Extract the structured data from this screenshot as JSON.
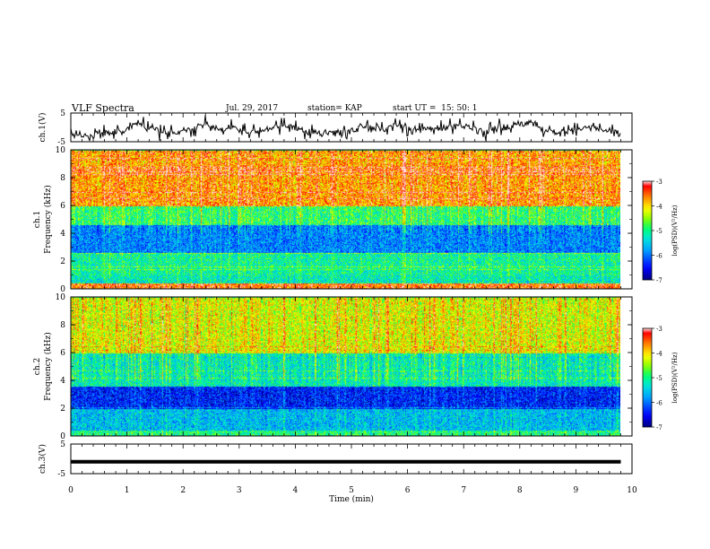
{
  "header": {
    "title": "VLF Spectra",
    "date": "Jul. 29, 2017",
    "station": "station= KAP",
    "start": "start UT =  15: 50: 1"
  },
  "chart_data": [
    {
      "type": "line",
      "name": "top-waveform",
      "ylabel": "ch.1(V)",
      "ylim": [
        -5,
        5
      ],
      "yticks": [
        "5",
        "-5"
      ],
      "x": [
        0,
        9.8
      ],
      "approx_level": 0,
      "color": "#000000"
    },
    {
      "type": "heatmap",
      "name": "ch1-spectrogram",
      "ylabel": "ch.1\nFrequency (kHz)",
      "ylim": [
        0,
        10
      ],
      "yticks": [
        "0",
        "2",
        "4",
        "6",
        "8",
        "10"
      ],
      "xlim": [
        0,
        9.8
      ],
      "colorbar": {
        "label": "log(PSD)(V²/Hz)",
        "range": [
          -7,
          -3
        ],
        "ticks": [
          "-3",
          "-4",
          "-5",
          "-6",
          "-7"
        ]
      },
      "bands": [
        {
          "from": 0.0,
          "to": 0.4,
          "level": -3.5
        },
        {
          "from": 0.4,
          "to": 1.0,
          "level": -5.2
        },
        {
          "from": 1.0,
          "to": 2.6,
          "level": -5.1
        },
        {
          "from": 2.6,
          "to": 4.6,
          "level": -5.9
        },
        {
          "from": 4.6,
          "to": 6.0,
          "level": -4.9
        },
        {
          "from": 6.0,
          "to": 10.0,
          "level": -3.7
        }
      ]
    },
    {
      "type": "heatmap",
      "name": "ch2-spectrogram",
      "ylabel": "ch.2\nFrequency (kHz)",
      "ylim": [
        0,
        10
      ],
      "yticks": [
        "0",
        "2",
        "4",
        "6",
        "8",
        "10"
      ],
      "xlim": [
        0,
        9.8
      ],
      "colorbar": {
        "label": "log(PSD)(V²/Hz)",
        "range": [
          -7,
          -3
        ],
        "ticks": [
          "-3",
          "-4",
          "-5",
          "-6",
          "-7"
        ]
      },
      "bands": [
        {
          "from": 0.0,
          "to": 0.4,
          "level": -5.0
        },
        {
          "from": 0.4,
          "to": 2.0,
          "level": -5.6
        },
        {
          "from": 2.0,
          "to": 3.6,
          "level": -6.4
        },
        {
          "from": 3.6,
          "to": 6.0,
          "level": -5.2
        },
        {
          "from": 6.0,
          "to": 10.0,
          "level": -4.2
        }
      ]
    },
    {
      "type": "line",
      "name": "bottom-waveform",
      "ylabel": "ch.3(V)",
      "ylim": [
        -5,
        5
      ],
      "yticks": [
        "5",
        "-5"
      ],
      "x": [
        0,
        9.8
      ],
      "y": [
        -1,
        -1
      ],
      "color": "#000000"
    }
  ],
  "xaxis": {
    "label": "Time (min)",
    "range": [
      0,
      10
    ],
    "ticks": [
      "0",
      "1",
      "2",
      "3",
      "4",
      "5",
      "6",
      "7",
      "8",
      "9",
      "10"
    ]
  },
  "colors": {
    "colormap": [
      "#00007f",
      "#0000ff",
      "#0080ff",
      "#00e0ff",
      "#00ff80",
      "#80ff00",
      "#ffff00",
      "#ff8000",
      "#ff0000",
      "#ffffff"
    ]
  }
}
